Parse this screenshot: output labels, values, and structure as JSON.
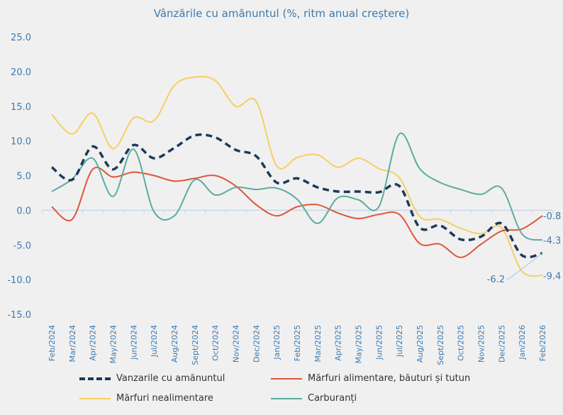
{
  "chart_data": {
    "type": "line",
    "title": "Vânzările cu amănuntul (%, ritm anual creștere)",
    "categories": [
      "Feb/2024",
      "Mar/2024",
      "Apr/2024",
      "May/2024",
      "Jun/2024",
      "Jul/2024",
      "Aug/2024",
      "Sept/2024",
      "Oct/2024",
      "Nov/2024",
      "Dec/2024",
      "Jan/2025",
      "Feb/2025",
      "Mar/2025",
      "Apr/2025",
      "May/2025",
      "Jun/2025",
      "Jul/2025",
      "Aug/2025",
      "Sept/2025",
      "Oct/2025",
      "Nov/2025",
      "Dec/2025",
      "Jan/2026",
      "Feb/2026"
    ],
    "ylim": [
      -15,
      25
    ],
    "yticks": [
      "-15.0",
      "-10.0",
      "-5.0",
      "0.0",
      "5.0",
      "10.0",
      "15.0",
      "20.0",
      "25.0"
    ],
    "grid": false,
    "legend_position": "bottom",
    "series": [
      {
        "name": "Vanzarile cu amănuntul",
        "color": "#1b3a5c",
        "dashed": true,
        "end_label": "-6.2",
        "values": [
          6.2,
          4.4,
          9.2,
          5.9,
          9.4,
          7.5,
          9.0,
          10.8,
          10.5,
          8.7,
          7.8,
          4.0,
          4.6,
          3.3,
          2.7,
          2.7,
          2.6,
          3.5,
          -2.5,
          -2.2,
          -4.2,
          -3.8,
          -1.9,
          -6.5,
          -6.2
        ]
      },
      {
        "name": "Mărfuri alimentare, băuturi și tutun",
        "color": "#e0553a",
        "dashed": false,
        "end_label": "-0.8",
        "values": [
          0.5,
          -1.3,
          5.9,
          4.8,
          5.5,
          5.0,
          4.2,
          4.6,
          5.0,
          3.5,
          0.8,
          -0.8,
          0.5,
          0.8,
          -0.4,
          -1.2,
          -0.6,
          -0.6,
          -4.8,
          -4.9,
          -6.8,
          -4.9,
          -3.0,
          -2.7,
          -0.8
        ]
      },
      {
        "name": "Mărfuri nealimentare",
        "color": "#f5d060",
        "dashed": false,
        "end_label": "-9.4",
        "values": [
          13.8,
          11.0,
          14.0,
          8.9,
          13.3,
          12.9,
          18.0,
          19.2,
          18.7,
          15.0,
          15.7,
          6.4,
          7.6,
          8.0,
          6.2,
          7.5,
          6.0,
          4.7,
          -0.9,
          -1.3,
          -2.6,
          -3.4,
          -2.5,
          -8.8,
          -9.4
        ]
      },
      {
        "name": "Carburanți",
        "color": "#5aad9e",
        "dashed": false,
        "end_label": "-4.3",
        "values": [
          2.7,
          4.5,
          7.5,
          2.0,
          8.8,
          -0.2,
          -0.8,
          4.4,
          2.2,
          3.3,
          3.0,
          3.2,
          1.6,
          -1.9,
          1.8,
          1.5,
          0.5,
          11.0,
          6.0,
          4.0,
          3.0,
          2.3,
          3.2,
          -3.4,
          -4.3
        ]
      }
    ]
  }
}
